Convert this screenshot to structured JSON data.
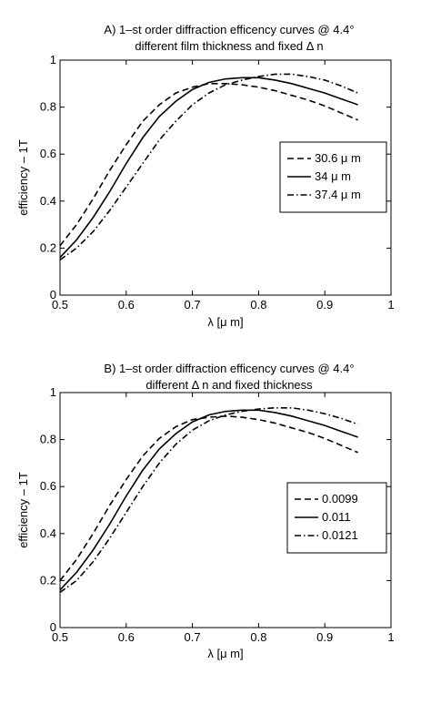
{
  "chart_data": [
    {
      "type": "line",
      "title": "A) 1–st order diffraction efficency curves @ 4.4°",
      "subtitle": "different film thickness and fixed Δ n",
      "xlabel": "λ [μ m]",
      "ylabel": "efficiency – 1T",
      "xlim": [
        0.5,
        1.0
      ],
      "ylim": [
        0,
        1
      ],
      "xticks": [
        "0.5",
        "0.6",
        "0.7",
        "0.8",
        "0.9",
        "1"
      ],
      "yticks": [
        "0",
        "0.2",
        "0.4",
        "0.6",
        "0.8",
        "1"
      ],
      "grid": false,
      "legend_position": "right",
      "x": [
        0.5,
        0.525,
        0.55,
        0.575,
        0.6,
        0.625,
        0.65,
        0.675,
        0.7,
        0.725,
        0.75,
        0.775,
        0.8,
        0.825,
        0.85,
        0.875,
        0.9,
        0.925,
        0.95
      ],
      "series": [
        {
          "name": "30.6 μ m",
          "style": "dashed",
          "values": [
            0.21,
            0.3,
            0.41,
            0.53,
            0.64,
            0.74,
            0.81,
            0.86,
            0.885,
            0.9,
            0.9,
            0.895,
            0.885,
            0.87,
            0.85,
            0.83,
            0.805,
            0.775,
            0.745
          ]
        },
        {
          "name": "34 μ m",
          "style": "solid",
          "values": [
            0.16,
            0.235,
            0.33,
            0.44,
            0.56,
            0.67,
            0.76,
            0.825,
            0.875,
            0.905,
            0.92,
            0.925,
            0.925,
            0.915,
            0.9,
            0.88,
            0.86,
            0.835,
            0.81
          ]
        },
        {
          "name": "37.4 μ m",
          "style": "dashdot",
          "values": [
            0.15,
            0.2,
            0.27,
            0.36,
            0.46,
            0.56,
            0.66,
            0.74,
            0.81,
            0.86,
            0.895,
            0.915,
            0.93,
            0.94,
            0.94,
            0.93,
            0.915,
            0.89,
            0.86
          ]
        }
      ]
    },
    {
      "type": "line",
      "title": "B) 1–st order diffraction efficency curves @ 4.4°",
      "subtitle": "different Δ n and fixed thickness",
      "xlabel": "λ [μ m]",
      "ylabel": "efficiency – 1T",
      "xlim": [
        0.5,
        1.0
      ],
      "ylim": [
        0,
        1
      ],
      "xticks": [
        "0.5",
        "0.6",
        "0.7",
        "0.8",
        "0.9",
        "1"
      ],
      "yticks": [
        "0",
        "0.2",
        "0.4",
        "0.6",
        "0.8",
        "1"
      ],
      "grid": false,
      "legend_position": "right",
      "x": [
        0.5,
        0.525,
        0.55,
        0.575,
        0.6,
        0.625,
        0.65,
        0.675,
        0.7,
        0.725,
        0.75,
        0.775,
        0.8,
        0.825,
        0.85,
        0.875,
        0.9,
        0.925,
        0.95
      ],
      "series": [
        {
          "name": "0.0099",
          "style": "dashed",
          "values": [
            0.2,
            0.29,
            0.4,
            0.52,
            0.63,
            0.73,
            0.805,
            0.855,
            0.885,
            0.895,
            0.9,
            0.895,
            0.885,
            0.87,
            0.85,
            0.83,
            0.805,
            0.775,
            0.745
          ]
        },
        {
          "name": "0.011",
          "style": "solid",
          "values": [
            0.16,
            0.235,
            0.33,
            0.44,
            0.56,
            0.67,
            0.76,
            0.825,
            0.875,
            0.905,
            0.92,
            0.925,
            0.925,
            0.915,
            0.9,
            0.88,
            0.86,
            0.835,
            0.81
          ]
        },
        {
          "name": "0.0121",
          "style": "dashdot",
          "values": [
            0.15,
            0.2,
            0.28,
            0.38,
            0.49,
            0.6,
            0.7,
            0.78,
            0.84,
            0.88,
            0.905,
            0.92,
            0.93,
            0.935,
            0.935,
            0.925,
            0.91,
            0.89,
            0.865
          ]
        }
      ]
    }
  ]
}
